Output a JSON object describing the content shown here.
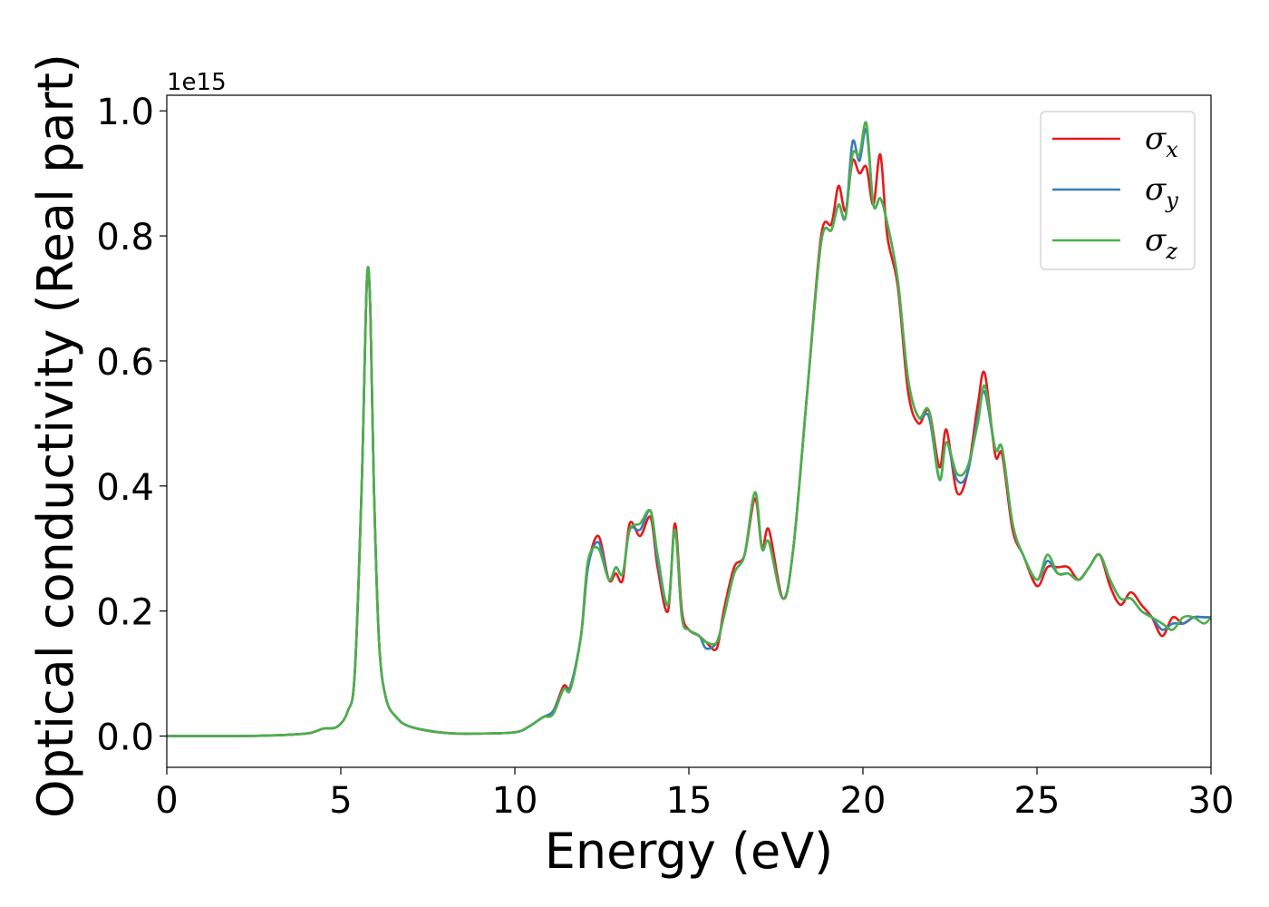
{
  "chart_data": {
    "type": "line",
    "title": "",
    "xlabel": "Energy (eV)",
    "ylabel": "Optical conductivity (Real part)",
    "y_offset_label": "1e15",
    "xlim": [
      0,
      30
    ],
    "ylim": [
      -0.05,
      1.025
    ],
    "xticks": [
      0,
      5,
      10,
      15,
      20,
      25,
      30
    ],
    "xtick_labels": [
      "0",
      "5",
      "10",
      "15",
      "20",
      "25",
      "30"
    ],
    "yticks": [
      0.0,
      0.2,
      0.4,
      0.6,
      0.8,
      1.0
    ],
    "ytick_labels": [
      "0.0",
      "0.2",
      "0.4",
      "0.6",
      "0.8",
      "1.0"
    ],
    "grid": false,
    "legend_position": "top-right",
    "series": [
      {
        "name": "σx",
        "symbol": "σ",
        "subscript": "x",
        "color": "#e41a1c",
        "x": [
          0,
          2,
          3,
          4,
          4.3,
          4.5,
          4.9,
          5.2,
          5.4,
          5.6,
          5.75,
          5.85,
          5.95,
          6.1,
          6.3,
          6.6,
          7,
          8,
          9,
          10,
          10.4,
          10.8,
          11.1,
          11.4,
          11.6,
          11.9,
          12.1,
          12.4,
          12.7,
          12.9,
          13.1,
          13.3,
          13.6,
          13.9,
          14.1,
          14.4,
          14.6,
          14.8,
          15.0,
          15.3,
          15.5,
          15.8,
          16.0,
          16.3,
          16.6,
          16.9,
          17.1,
          17.3,
          17.7,
          18.0,
          18.4,
          18.8,
          19.1,
          19.3,
          19.5,
          19.7,
          19.9,
          20.1,
          20.3,
          20.5,
          20.7,
          21.0,
          21.3,
          21.6,
          21.9,
          22.2,
          22.4,
          22.7,
          23.0,
          23.3,
          23.5,
          23.8,
          24.0,
          24.3,
          24.6,
          25.0,
          25.3,
          25.6,
          25.9,
          26.2,
          26.5,
          26.8,
          27.1,
          27.4,
          27.7,
          28.0,
          28.3,
          28.6,
          28.9,
          29.2,
          29.5,
          29.8,
          30.0
        ],
        "y": [
          0.0,
          0.0,
          0.001,
          0.004,
          0.008,
          0.012,
          0.015,
          0.04,
          0.1,
          0.4,
          0.73,
          0.68,
          0.4,
          0.15,
          0.06,
          0.03,
          0.015,
          0.005,
          0.004,
          0.006,
          0.015,
          0.03,
          0.04,
          0.08,
          0.08,
          0.16,
          0.27,
          0.32,
          0.25,
          0.26,
          0.25,
          0.34,
          0.32,
          0.35,
          0.27,
          0.2,
          0.34,
          0.2,
          0.17,
          0.16,
          0.15,
          0.14,
          0.2,
          0.27,
          0.29,
          0.38,
          0.3,
          0.33,
          0.22,
          0.3,
          0.55,
          0.8,
          0.82,
          0.88,
          0.84,
          0.92,
          0.9,
          0.91,
          0.85,
          0.93,
          0.8,
          0.72,
          0.55,
          0.5,
          0.52,
          0.43,
          0.49,
          0.39,
          0.42,
          0.53,
          0.58,
          0.45,
          0.45,
          0.33,
          0.29,
          0.24,
          0.27,
          0.27,
          0.27,
          0.25,
          0.27,
          0.29,
          0.24,
          0.21,
          0.23,
          0.21,
          0.19,
          0.16,
          0.19,
          0.18,
          0.19,
          0.19,
          0.19
        ]
      },
      {
        "name": "σy",
        "symbol": "σ",
        "subscript": "y",
        "color": "#377eb8",
        "x": [
          0,
          2,
          3,
          4,
          4.3,
          4.5,
          4.9,
          5.2,
          5.4,
          5.6,
          5.75,
          5.85,
          5.95,
          6.1,
          6.3,
          6.6,
          7,
          8,
          9,
          10,
          10.4,
          10.8,
          11.1,
          11.4,
          11.6,
          11.9,
          12.1,
          12.4,
          12.7,
          12.9,
          13.1,
          13.3,
          13.6,
          13.9,
          14.1,
          14.4,
          14.6,
          14.8,
          15.0,
          15.3,
          15.5,
          15.8,
          16.0,
          16.3,
          16.6,
          16.9,
          17.1,
          17.3,
          17.7,
          18.0,
          18.4,
          18.8,
          19.1,
          19.3,
          19.5,
          19.7,
          19.9,
          20.1,
          20.3,
          20.5,
          20.7,
          21.0,
          21.3,
          21.6,
          21.9,
          22.2,
          22.4,
          22.7,
          23.0,
          23.3,
          23.5,
          23.8,
          24.0,
          24.3,
          24.6,
          25.0,
          25.3,
          25.6,
          25.9,
          26.2,
          26.5,
          26.8,
          27.1,
          27.4,
          27.7,
          28.0,
          28.3,
          28.6,
          28.9,
          29.2,
          29.5,
          29.8,
          30.0
        ],
        "y": [
          0.0,
          0.0,
          0.001,
          0.004,
          0.008,
          0.012,
          0.015,
          0.04,
          0.1,
          0.4,
          0.73,
          0.68,
          0.4,
          0.15,
          0.06,
          0.03,
          0.015,
          0.005,
          0.004,
          0.006,
          0.015,
          0.03,
          0.04,
          0.075,
          0.08,
          0.16,
          0.27,
          0.31,
          0.25,
          0.27,
          0.26,
          0.33,
          0.33,
          0.36,
          0.28,
          0.21,
          0.33,
          0.19,
          0.17,
          0.16,
          0.14,
          0.15,
          0.19,
          0.26,
          0.29,
          0.39,
          0.3,
          0.31,
          0.22,
          0.3,
          0.55,
          0.79,
          0.81,
          0.85,
          0.83,
          0.95,
          0.92,
          0.97,
          0.85,
          0.86,
          0.82,
          0.73,
          0.57,
          0.51,
          0.51,
          0.41,
          0.47,
          0.41,
          0.42,
          0.51,
          0.55,
          0.46,
          0.46,
          0.34,
          0.29,
          0.25,
          0.28,
          0.26,
          0.26,
          0.25,
          0.27,
          0.29,
          0.25,
          0.22,
          0.22,
          0.2,
          0.19,
          0.17,
          0.18,
          0.18,
          0.19,
          0.19,
          0.19
        ]
      },
      {
        "name": "σz",
        "symbol": "σ",
        "subscript": "z",
        "color": "#4daf4a",
        "x": [
          0,
          2,
          3,
          4,
          4.3,
          4.5,
          4.9,
          5.2,
          5.4,
          5.6,
          5.75,
          5.85,
          5.95,
          6.1,
          6.3,
          6.6,
          7,
          8,
          9,
          10,
          10.4,
          10.8,
          11.1,
          11.4,
          11.6,
          11.9,
          12.1,
          12.4,
          12.7,
          12.9,
          13.1,
          13.3,
          13.6,
          13.9,
          14.1,
          14.4,
          14.6,
          14.8,
          15.0,
          15.3,
          15.5,
          15.8,
          16.0,
          16.3,
          16.6,
          16.9,
          17.1,
          17.3,
          17.7,
          18.0,
          18.4,
          18.8,
          19.1,
          19.3,
          19.5,
          19.7,
          19.9,
          20.1,
          20.3,
          20.5,
          20.7,
          21.0,
          21.3,
          21.6,
          21.9,
          22.2,
          22.4,
          22.7,
          23.0,
          23.3,
          23.5,
          23.8,
          24.0,
          24.3,
          24.6,
          25.0,
          25.3,
          25.6,
          25.9,
          26.2,
          26.5,
          26.8,
          27.1,
          27.4,
          27.7,
          28.0,
          28.3,
          28.6,
          28.9,
          29.2,
          29.5,
          29.8,
          30.0
        ],
        "y": [
          0.0,
          0.0,
          0.001,
          0.004,
          0.008,
          0.012,
          0.015,
          0.04,
          0.1,
          0.4,
          0.73,
          0.68,
          0.4,
          0.15,
          0.06,
          0.03,
          0.015,
          0.005,
          0.004,
          0.006,
          0.015,
          0.03,
          0.035,
          0.075,
          0.075,
          0.16,
          0.28,
          0.3,
          0.25,
          0.27,
          0.26,
          0.33,
          0.34,
          0.36,
          0.29,
          0.21,
          0.33,
          0.19,
          0.17,
          0.16,
          0.15,
          0.15,
          0.19,
          0.26,
          0.29,
          0.39,
          0.3,
          0.31,
          0.22,
          0.3,
          0.55,
          0.79,
          0.81,
          0.85,
          0.83,
          0.93,
          0.93,
          0.98,
          0.85,
          0.86,
          0.82,
          0.73,
          0.57,
          0.51,
          0.52,
          0.41,
          0.47,
          0.42,
          0.43,
          0.5,
          0.56,
          0.46,
          0.46,
          0.34,
          0.29,
          0.25,
          0.29,
          0.26,
          0.26,
          0.25,
          0.27,
          0.29,
          0.25,
          0.22,
          0.22,
          0.2,
          0.19,
          0.18,
          0.17,
          0.19,
          0.19,
          0.18,
          0.19
        ]
      }
    ]
  }
}
